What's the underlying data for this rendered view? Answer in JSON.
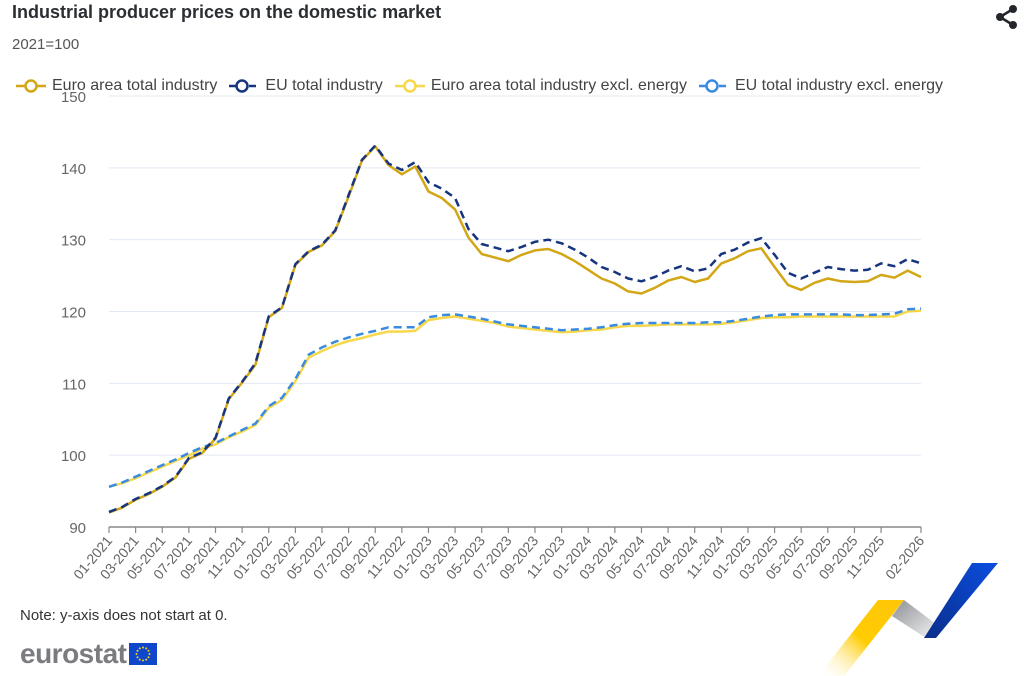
{
  "header": {
    "title": "Industrial producer prices on the domestic market",
    "subtitle": "2021=100",
    "share_icon": "share-icon"
  },
  "legend": [
    {
      "label": "Euro area total industry",
      "color": "#d2a614",
      "style": "solid"
    },
    {
      "label": "EU total industry",
      "color": "#17357f",
      "style": "dashed"
    },
    {
      "label": "Euro area total industry excl. energy",
      "color": "#f7d84b",
      "style": "solid"
    },
    {
      "label": "EU total industry excl. energy",
      "color": "#3a8be0",
      "style": "dashed"
    }
  ],
  "footer": {
    "note": "Note: y-axis does not start at 0.",
    "logo_text": "eurostat",
    "logo_flag_icon": "eu-flag-icon"
  },
  "chart_data": {
    "type": "line",
    "title": "Industrial producer prices on the domestic market",
    "subtitle": "2021=100",
    "xlabel": "",
    "ylabel": "",
    "ylim": [
      90,
      150
    ],
    "yticks": [
      90,
      100,
      110,
      120,
      130,
      140,
      150
    ],
    "grid": true,
    "legend_position": "top",
    "x": [
      "01-2021",
      "02-2021",
      "03-2021",
      "04-2021",
      "05-2021",
      "06-2021",
      "07-2021",
      "08-2021",
      "09-2021",
      "10-2021",
      "11-2021",
      "12-2021",
      "01-2022",
      "02-2022",
      "03-2022",
      "04-2022",
      "05-2022",
      "06-2022",
      "07-2022",
      "08-2022",
      "09-2022",
      "10-2022",
      "11-2022",
      "12-2022",
      "01-2023",
      "02-2023",
      "03-2023",
      "04-2023",
      "05-2023",
      "06-2023",
      "07-2023",
      "08-2023",
      "09-2023",
      "10-2023",
      "11-2023",
      "12-2023",
      "01-2024",
      "02-2024",
      "03-2024",
      "04-2024",
      "05-2024",
      "06-2024",
      "07-2024",
      "08-2024",
      "09-2024",
      "10-2024",
      "11-2024",
      "12-2024",
      "01-2025",
      "02-2025",
      "03-2025",
      "04-2025",
      "05-2025",
      "06-2025",
      "07-2025",
      "08-2025",
      "09-2025",
      "10-2025",
      "11-2025",
      "12-2025",
      "01-2026",
      "02-2026"
    ],
    "xtick_labels": [
      "01-2021",
      "03-2021",
      "05-2021",
      "07-2021",
      "09-2021",
      "11-2021",
      "01-2022",
      "03-2022",
      "05-2022",
      "07-2022",
      "09-2022",
      "11-2022",
      "01-2023",
      "03-2023",
      "05-2023",
      "07-2023",
      "09-2023",
      "11-2023",
      "01-2024",
      "03-2024",
      "05-2024",
      "07-2024",
      "09-2024",
      "11-2024",
      "01-2025",
      "03-2025",
      "05-2025",
      "07-2025",
      "09-2025",
      "11-2025",
      "02-2026"
    ],
    "series": [
      {
        "name": "Euro area total industry",
        "color": "#d2a614",
        "dash": false,
        "values": [
          92.0,
          92.7,
          93.8,
          94.6,
          95.6,
          96.9,
          99.5,
          100.3,
          102.3,
          107.8,
          110.1,
          112.6,
          119.2,
          120.5,
          126.5,
          128.3,
          129.2,
          131.2,
          136.0,
          141.0,
          143.0,
          140.4,
          139.1,
          140.2,
          136.7,
          135.8,
          134.2,
          130.3,
          128.0,
          127.5,
          127.0,
          127.9,
          128.5,
          128.7,
          128.0,
          127.0,
          125.8,
          124.6,
          123.9,
          122.8,
          122.5,
          123.3,
          124.3,
          124.8,
          124.1,
          124.6,
          126.7,
          127.4,
          128.4,
          128.8,
          126.2,
          123.7,
          123.0,
          124.0,
          124.6,
          124.2,
          124.1,
          124.2,
          125.1,
          124.7,
          125.7,
          124.8
        ]
      },
      {
        "name": "EU total industry",
        "color": "#17357f",
        "dash": true,
        "values": [
          92.1,
          92.8,
          93.9,
          94.7,
          95.7,
          97.0,
          99.6,
          100.4,
          102.4,
          107.9,
          110.2,
          112.8,
          119.3,
          120.6,
          126.6,
          128.4,
          129.3,
          131.3,
          136.2,
          141.1,
          143.1,
          140.6,
          139.7,
          140.8,
          138.0,
          137.1,
          135.8,
          131.5,
          129.4,
          128.9,
          128.4,
          129.0,
          129.7,
          130.0,
          129.5,
          128.6,
          127.5,
          126.2,
          125.5,
          124.6,
          124.2,
          124.8,
          125.7,
          126.3,
          125.6,
          126.0,
          128.0,
          128.6,
          129.6,
          130.2,
          127.9,
          125.4,
          124.6,
          125.4,
          126.2,
          125.9,
          125.7,
          125.8,
          126.7,
          126.3,
          127.3,
          126.7
        ]
      },
      {
        "name": "Euro area total industry excl. energy",
        "color": "#f7d84b",
        "dash": false,
        "values": [
          95.6,
          96.1,
          96.8,
          97.6,
          98.4,
          99.2,
          100.0,
          100.9,
          101.5,
          102.5,
          103.3,
          104.2,
          106.6,
          107.7,
          110.3,
          113.6,
          114.5,
          115.3,
          115.9,
          116.3,
          116.8,
          117.2,
          117.2,
          117.3,
          118.8,
          119.1,
          119.3,
          119.0,
          118.7,
          118.4,
          117.9,
          117.7,
          117.5,
          117.3,
          117.1,
          117.2,
          117.4,
          117.5,
          117.8,
          118.0,
          118.0,
          118.1,
          118.2,
          118.2,
          118.2,
          118.2,
          118.3,
          118.5,
          118.8,
          119.1,
          119.2,
          119.2,
          119.3,
          119.3,
          119.3,
          119.3,
          119.3,
          119.3,
          119.3,
          119.3,
          120.0,
          120.1
        ]
      },
      {
        "name": "EU total industry excl. energy",
        "color": "#3a8be0",
        "dash": true,
        "values": [
          95.6,
          96.2,
          97.0,
          97.8,
          98.6,
          99.4,
          100.3,
          101.1,
          101.7,
          102.6,
          103.5,
          104.4,
          106.8,
          108.0,
          110.6,
          114.0,
          115.0,
          115.8,
          116.4,
          116.9,
          117.3,
          117.8,
          117.8,
          117.8,
          119.2,
          119.5,
          119.6,
          119.3,
          119.0,
          118.6,
          118.2,
          118.0,
          117.8,
          117.6,
          117.4,
          117.5,
          117.6,
          117.8,
          118.1,
          118.3,
          118.4,
          118.4,
          118.4,
          118.4,
          118.4,
          118.5,
          118.5,
          118.7,
          119.0,
          119.3,
          119.5,
          119.6,
          119.6,
          119.6,
          119.6,
          119.6,
          119.5,
          119.5,
          119.6,
          119.7,
          120.3,
          120.4
        ]
      }
    ]
  }
}
